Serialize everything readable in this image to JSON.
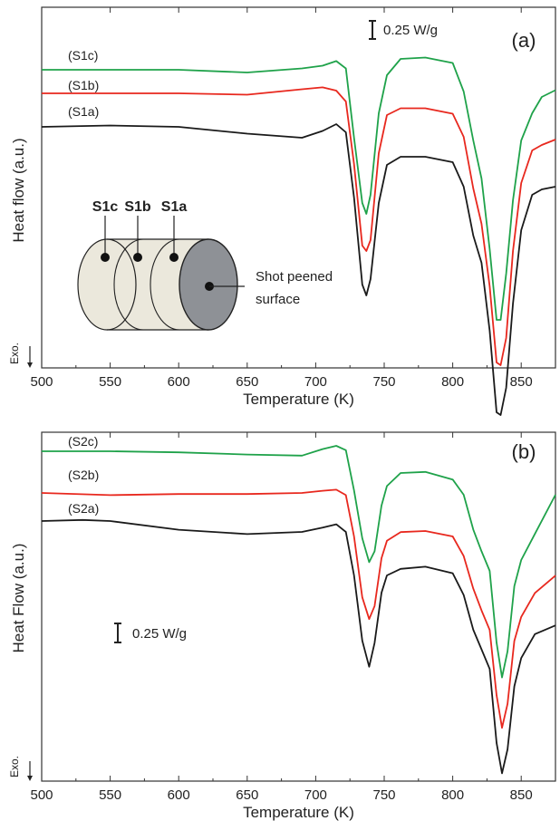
{
  "chart_data": [
    {
      "type": "line",
      "panel_tag": "(a)",
      "xlabel": "Temperature (K)",
      "ylabel": "Heat flow  (a.u.)",
      "xlim": [
        500,
        875
      ],
      "xticks": [
        500,
        550,
        600,
        650,
        700,
        750,
        800,
        850
      ],
      "grid": false,
      "scale_bar_label": "0.25 W/g",
      "exo_label": "Exo.",
      "y_units": "relative heat flow (arbitrary units, higher = up)",
      "series": [
        {
          "name": "(S1c)",
          "color": "#1fa24a",
          "points": [
            [
              500,
              0
            ],
            [
              550,
              0
            ],
            [
              600,
              0
            ],
            [
              650,
              -0.1
            ],
            [
              690,
              0.05
            ],
            [
              705,
              0.15
            ],
            [
              715,
              0.32
            ],
            [
              722,
              0.05
            ],
            [
              728,
              -2.5
            ],
            [
              734,
              -4.9
            ],
            [
              737,
              -5.3
            ],
            [
              740,
              -4.6
            ],
            [
              746,
              -1.6
            ],
            [
              752,
              -0.2
            ],
            [
              762,
              0.4
            ],
            [
              780,
              0.45
            ],
            [
              800,
              0.25
            ],
            [
              808,
              -0.8
            ],
            [
              815,
              -2.6
            ],
            [
              821,
              -4.0
            ],
            [
              827,
              -6.6
            ],
            [
              832,
              -9.2
            ],
            [
              835,
              -9.2
            ],
            [
              839,
              -7.5
            ],
            [
              844,
              -4.8
            ],
            [
              850,
              -2.6
            ],
            [
              858,
              -1.6
            ],
            [
              865,
              -1.0
            ],
            [
              875,
              -0.75
            ]
          ]
        },
        {
          "name": "(S1b)",
          "color": "#e8281e",
          "points": [
            [
              500,
              0
            ],
            [
              550,
              0
            ],
            [
              600,
              0
            ],
            [
              650,
              -0.05
            ],
            [
              690,
              0.15
            ],
            [
              705,
              0.22
            ],
            [
              715,
              0.1
            ],
            [
              722,
              -0.3
            ],
            [
              728,
              -2.6
            ],
            [
              734,
              -5.6
            ],
            [
              737,
              -5.8
            ],
            [
              740,
              -5.4
            ],
            [
              746,
              -2.2
            ],
            [
              752,
              -0.8
            ],
            [
              762,
              -0.55
            ],
            [
              780,
              -0.55
            ],
            [
              800,
              -0.75
            ],
            [
              808,
              -1.6
            ],
            [
              815,
              -3.5
            ],
            [
              821,
              -4.8
            ],
            [
              827,
              -7.1
            ],
            [
              832,
              -9.9
            ],
            [
              835,
              -10.0
            ],
            [
              839,
              -9.0
            ],
            [
              844,
              -5.8
            ],
            [
              850,
              -3.3
            ],
            [
              858,
              -2.1
            ],
            [
              865,
              -1.9
            ],
            [
              875,
              -1.7
            ]
          ]
        },
        {
          "name": "(S1a)",
          "color": "#1a1a1a",
          "points": [
            [
              500,
              0
            ],
            [
              550,
              0.05
            ],
            [
              600,
              0.0
            ],
            [
              650,
              -0.25
            ],
            [
              690,
              -0.4
            ],
            [
              705,
              -0.15
            ],
            [
              715,
              0.1
            ],
            [
              722,
              -0.2
            ],
            [
              728,
              -2.6
            ],
            [
              734,
              -5.8
            ],
            [
              737,
              -6.2
            ],
            [
              740,
              -5.6
            ],
            [
              746,
              -2.8
            ],
            [
              752,
              -1.4
            ],
            [
              762,
              -1.1
            ],
            [
              780,
              -1.1
            ],
            [
              800,
              -1.3
            ],
            [
              808,
              -2.2
            ],
            [
              815,
              -4.0
            ],
            [
              821,
              -5.0
            ],
            [
              827,
              -7.5
            ],
            [
              832,
              -10.5
            ],
            [
              835,
              -10.6
            ],
            [
              839,
              -9.6
            ],
            [
              844,
              -6.5
            ],
            [
              850,
              -3.8
            ],
            [
              858,
              -2.5
            ],
            [
              865,
              -2.3
            ],
            [
              875,
              -2.2
            ]
          ]
        }
      ],
      "inset": {
        "labels": [
          "S1c",
          "S1b",
          "S1a"
        ],
        "note_line1": "Shot peened",
        "note_line2": "surface"
      }
    },
    {
      "type": "line",
      "panel_tag": "(b)",
      "xlabel": "Temperature (K)",
      "ylabel": "Heat Flow (a.u.)",
      "xlim": [
        500,
        875
      ],
      "xticks": [
        500,
        550,
        600,
        650,
        700,
        750,
        800,
        850
      ],
      "grid": false,
      "scale_bar_label": "0.25 W/g",
      "exo_label": "Exo.",
      "y_units": "relative heat flow (arbitrary units, higher = up)",
      "series": [
        {
          "name": "(S2c)",
          "color": "#1fa24a",
          "points": [
            [
              500,
              0
            ],
            [
              550,
              0
            ],
            [
              600,
              -0.05
            ],
            [
              650,
              -0.15
            ],
            [
              690,
              -0.2
            ],
            [
              705,
              0.1
            ],
            [
              715,
              0.25
            ],
            [
              722,
              0.05
            ],
            [
              728,
              -1.8
            ],
            [
              734,
              -4.0
            ],
            [
              739,
              -5.1
            ],
            [
              743,
              -4.6
            ],
            [
              748,
              -2.5
            ],
            [
              752,
              -1.6
            ],
            [
              762,
              -1.0
            ],
            [
              780,
              -0.95
            ],
            [
              800,
              -1.3
            ],
            [
              808,
              -2.0
            ],
            [
              815,
              -3.6
            ],
            [
              821,
              -4.6
            ],
            [
              827,
              -5.5
            ],
            [
              832,
              -8.8
            ],
            [
              836,
              -10.4
            ],
            [
              840,
              -9.2
            ],
            [
              845,
              -6.2
            ],
            [
              850,
              -5.0
            ],
            [
              860,
              -3.8
            ],
            [
              875,
              -2.0
            ]
          ]
        },
        {
          "name": "(S2b)",
          "color": "#e8281e",
          "points": [
            [
              500,
              0
            ],
            [
              550,
              -0.1
            ],
            [
              600,
              -0.05
            ],
            [
              650,
              -0.05
            ],
            [
              690,
              0.0
            ],
            [
              705,
              0.1
            ],
            [
              715,
              0.15
            ],
            [
              722,
              -0.1
            ],
            [
              728,
              -2.0
            ],
            [
              734,
              -4.8
            ],
            [
              739,
              -5.8
            ],
            [
              743,
              -5.2
            ],
            [
              748,
              -3.0
            ],
            [
              752,
              -2.2
            ],
            [
              762,
              -1.8
            ],
            [
              780,
              -1.75
            ],
            [
              800,
              -2.0
            ],
            [
              808,
              -2.9
            ],
            [
              815,
              -4.4
            ],
            [
              821,
              -5.4
            ],
            [
              827,
              -6.3
            ],
            [
              832,
              -9.3
            ],
            [
              836,
              -10.8
            ],
            [
              840,
              -9.7
            ],
            [
              845,
              -6.8
            ],
            [
              850,
              -5.7
            ],
            [
              860,
              -4.6
            ],
            [
              875,
              -3.8
            ]
          ]
        },
        {
          "name": "(S2a)",
          "color": "#1a1a1a",
          "points": [
            [
              500,
              0
            ],
            [
              530,
              0.05
            ],
            [
              550,
              0
            ],
            [
              600,
              -0.4
            ],
            [
              650,
              -0.6
            ],
            [
              690,
              -0.5
            ],
            [
              705,
              -0.3
            ],
            [
              715,
              -0.15
            ],
            [
              722,
              -0.5
            ],
            [
              728,
              -2.5
            ],
            [
              734,
              -5.5
            ],
            [
              739,
              -6.7
            ],
            [
              743,
              -5.6
            ],
            [
              748,
              -3.3
            ],
            [
              752,
              -2.5
            ],
            [
              762,
              -2.2
            ],
            [
              780,
              -2.1
            ],
            [
              800,
              -2.4
            ],
            [
              808,
              -3.4
            ],
            [
              815,
              -5.0
            ],
            [
              821,
              -5.9
            ],
            [
              827,
              -6.8
            ],
            [
              832,
              -10.2
            ],
            [
              836,
              -11.6
            ],
            [
              840,
              -10.5
            ],
            [
              845,
              -7.6
            ],
            [
              850,
              -6.3
            ],
            [
              860,
              -5.2
            ],
            [
              875,
              -4.8
            ]
          ]
        }
      ],
      "inset": null
    }
  ]
}
